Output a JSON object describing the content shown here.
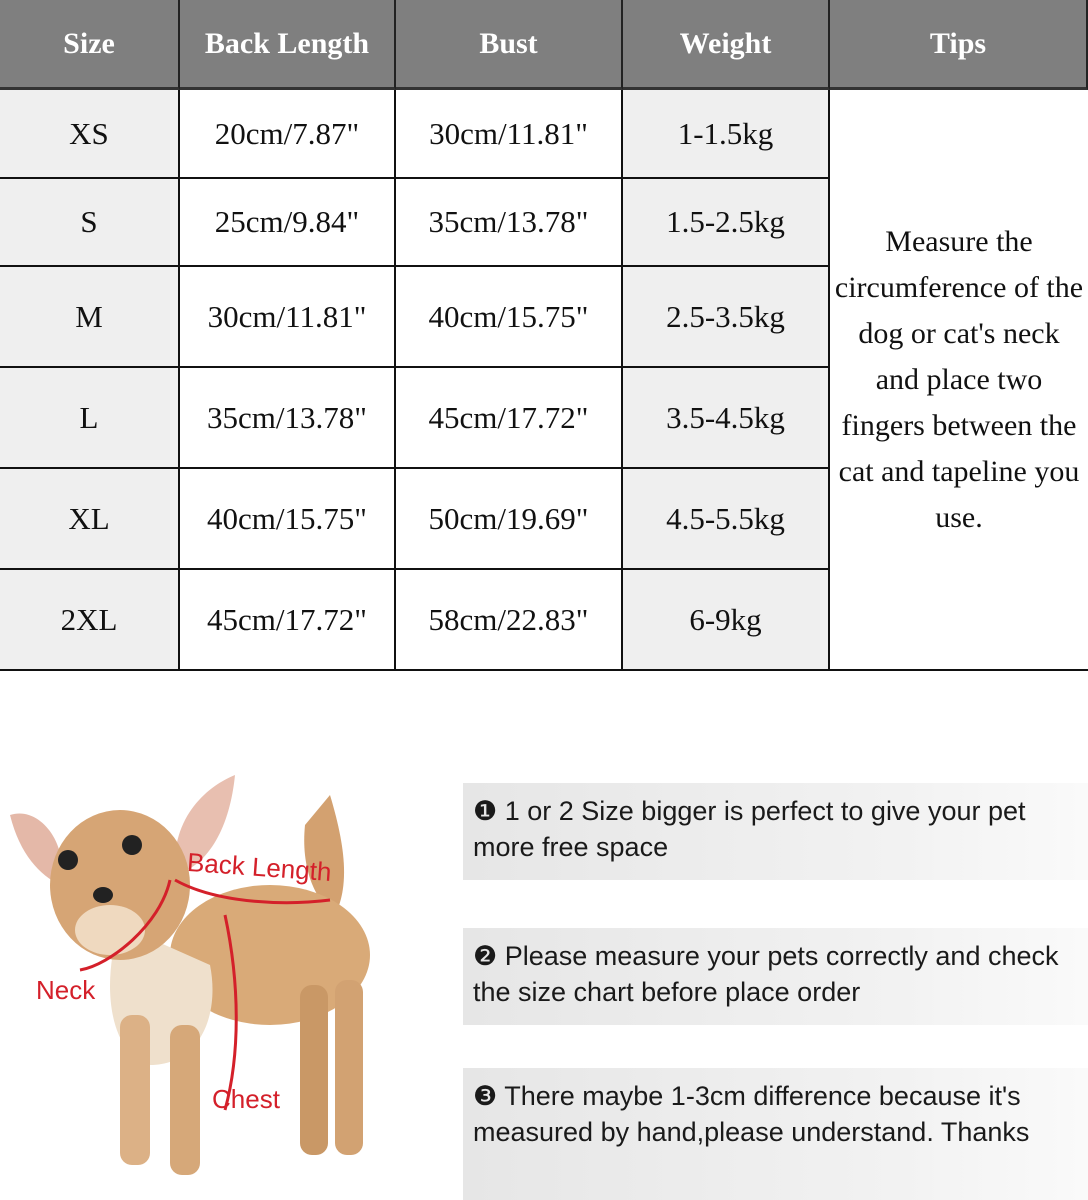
{
  "table": {
    "headers": [
      "Size",
      "Back Length",
      "Bust",
      "Weight",
      "Tips"
    ],
    "rows": [
      [
        "XS",
        "20cm/7.87\"",
        "30cm/11.81\"",
        "1-1.5kg"
      ],
      [
        "S",
        "25cm/9.84\"",
        "35cm/13.78\"",
        "1.5-2.5kg"
      ],
      [
        "M",
        "30cm/11.81\"",
        "40cm/15.75\"",
        "2.5-3.5kg"
      ],
      [
        "L",
        "35cm/13.78\"",
        "45cm/17.72\"",
        "3.5-4.5kg"
      ],
      [
        "XL",
        "40cm/15.75\"",
        "50cm/19.69\"",
        "4.5-5.5kg"
      ],
      [
        "2XL",
        "45cm/17.72\"",
        "58cm/22.83\"",
        "6-9kg"
      ]
    ],
    "tips": "Measure the circumference of the dog or cat's neck and place two fingers between the cat and tapeline you use."
  },
  "diagram": {
    "labels": {
      "back": "Back Length",
      "neck": "Neck",
      "chest": "Chest"
    },
    "label_color": "#d4202a"
  },
  "notes": [
    {
      "marker": "❶",
      "text": "1 or 2 Size bigger is perfect to give your pet more free space"
    },
    {
      "marker": "❷",
      "text": "Please measure your pets correctly and check the size chart before place order"
    },
    {
      "marker": "❸",
      "text": "There maybe 1-3cm difference because it's measured by hand,please understand. Thanks"
    }
  ]
}
